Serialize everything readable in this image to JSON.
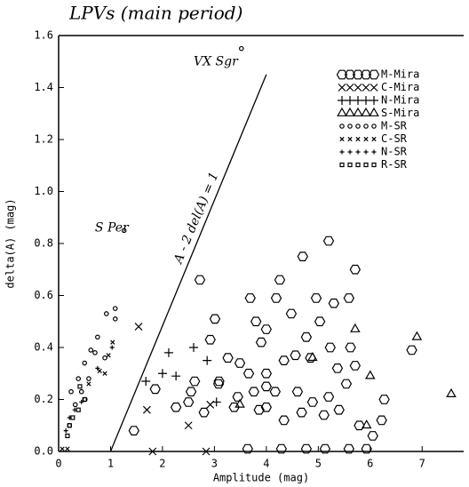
{
  "chart_data": {
    "type": "scatter",
    "title": "LPVs (main period)",
    "x_label": "Amplitude (mag)",
    "y_label": "delta(A) (mag)",
    "xlim": [
      0,
      7.8
    ],
    "ylim": [
      0,
      1.6
    ],
    "xticks": [
      0,
      1,
      2,
      3,
      4,
      5,
      6,
      7
    ],
    "yticks": [
      {
        "value": 0,
        "label": "0.0"
      },
      0.2,
      0.4,
      0.6,
      0.8,
      {
        "value": 1,
        "label": "1.0"
      },
      1.2,
      1.4,
      1.6
    ],
    "legend": "upper right",
    "series": [
      {
        "name": "M-Mira",
        "marker": "hexagon",
        "color": "#000000",
        "x": [
          2.72,
          4.26,
          4.7,
          5.2,
          5.71,
          5.59,
          5.3,
          4.96,
          4.19,
          3.69,
          3.01,
          2.92,
          2.62,
          2.55,
          2.5,
          2.26,
          1.45,
          1.86,
          2.8,
          3.08,
          3.38,
          3.66,
          3.9,
          3.8,
          4.0,
          4.48,
          4.77,
          5.03,
          4.56,
          4.85,
          5.23,
          5.62,
          5.71,
          5.37,
          4.34,
          4.0,
          3.76,
          3.49,
          3.45,
          3.86,
          4.17,
          4.6,
          4.89,
          5.2,
          5.54,
          5.4,
          5.11,
          4.68,
          4.34,
          4.0,
          5.79,
          6.22,
          6.27,
          6.05,
          6.8,
          3.64,
          4.29,
          4.77,
          5.13,
          5.59,
          5.93,
          3.09,
          3.26,
          4.0
        ],
        "values": [
          0.66,
          0.66,
          0.75,
          0.81,
          0.7,
          0.59,
          0.57,
          0.59,
          0.59,
          0.59,
          0.51,
          0.43,
          0.27,
          0.23,
          0.19,
          0.17,
          0.08,
          0.24,
          0.15,
          0.26,
          0.17,
          0.3,
          0.42,
          0.5,
          0.47,
          0.53,
          0.44,
          0.5,
          0.37,
          0.36,
          0.4,
          0.4,
          0.33,
          0.32,
          0.35,
          0.3,
          0.23,
          0.34,
          0.21,
          0.16,
          0.23,
          0.23,
          0.19,
          0.21,
          0.26,
          0.16,
          0.14,
          0.15,
          0.12,
          0.17,
          0.1,
          0.12,
          0.2,
          0.06,
          0.39,
          0.01,
          0.01,
          0.01,
          0.01,
          0.01,
          0.01,
          0.27,
          0.36,
          0.25
        ]
      },
      {
        "name": "C-Mira",
        "marker": "x",
        "color": "#000000",
        "x": [
          1.81,
          2.84,
          1.54,
          2.5,
          2.92,
          1.7
        ],
        "values": [
          0,
          0,
          0.48,
          0.1,
          0.18,
          0.16
        ]
      },
      {
        "name": "N-Mira",
        "marker": "plus",
        "color": "#000000",
        "x": [
          2.12,
          2.6,
          2.86,
          2.0,
          2.26,
          3.04,
          1.68
        ],
        "values": [
          0.38,
          0.4,
          0.35,
          0.3,
          0.29,
          0.19,
          0.27
        ]
      },
      {
        "name": "S-Mira",
        "marker": "triangle",
        "color": "#000000",
        "x": [
          5.71,
          6.9,
          7.56,
          4.89,
          6.0,
          3.49,
          5.93
        ],
        "values": [
          0.47,
          0.44,
          0.22,
          0.36,
          0.29,
          0.18,
          0.1
        ]
      },
      {
        "name": "M-SR",
        "marker": "circle-small",
        "color": "#000000",
        "x": [
          1.09,
          0.92,
          1.09,
          0.75,
          0.5,
          0.38,
          0.24,
          0.32,
          0.44,
          0.58,
          0.89,
          0.7,
          0.21,
          0.51,
          0.62,
          1.26,
          3.52
        ],
        "values": [
          0.55,
          0.53,
          0.51,
          0.44,
          0.34,
          0.28,
          0.23,
          0.18,
          0.23,
          0.28,
          0.36,
          0.38,
          0.1,
          0.2,
          0.39,
          0.85,
          1.55
        ]
      },
      {
        "name": "C-SR",
        "marker": "x-small",
        "color": "#000000",
        "x": [
          0.89,
          0.58,
          0.96,
          1.04,
          0.79,
          0.07,
          0.17
        ],
        "values": [
          0.3,
          0.26,
          0.37,
          0.42,
          0.31,
          0.01,
          0.01
        ]
      },
      {
        "name": "N-SR",
        "marker": "plus-small",
        "color": "#000000",
        "x": [
          0.21,
          0.31,
          0.44,
          0.75,
          0.14,
          1.03
        ],
        "values": [
          0.13,
          0.16,
          0.19,
          0.32,
          0.08,
          0.4
        ]
      },
      {
        "name": "R-SR",
        "marker": "square-small",
        "color": "#000000",
        "x": [
          0.21,
          0.27,
          0.38,
          0.5,
          0.41,
          0.17
        ],
        "values": [
          0.1,
          0.13,
          0.16,
          0.2,
          0.25,
          0.06
        ]
      }
    ],
    "reference_line": {
      "label": "A - 2 del(A) = 1",
      "x": [
        1,
        4
      ],
      "y": [
        0,
        1.45
      ]
    },
    "annotations": [
      {
        "text": "VX Sgr",
        "x": 2.6,
        "y": 1.5
      },
      {
        "text": "S Per",
        "x": 0.7,
        "y": 0.86
      }
    ]
  }
}
